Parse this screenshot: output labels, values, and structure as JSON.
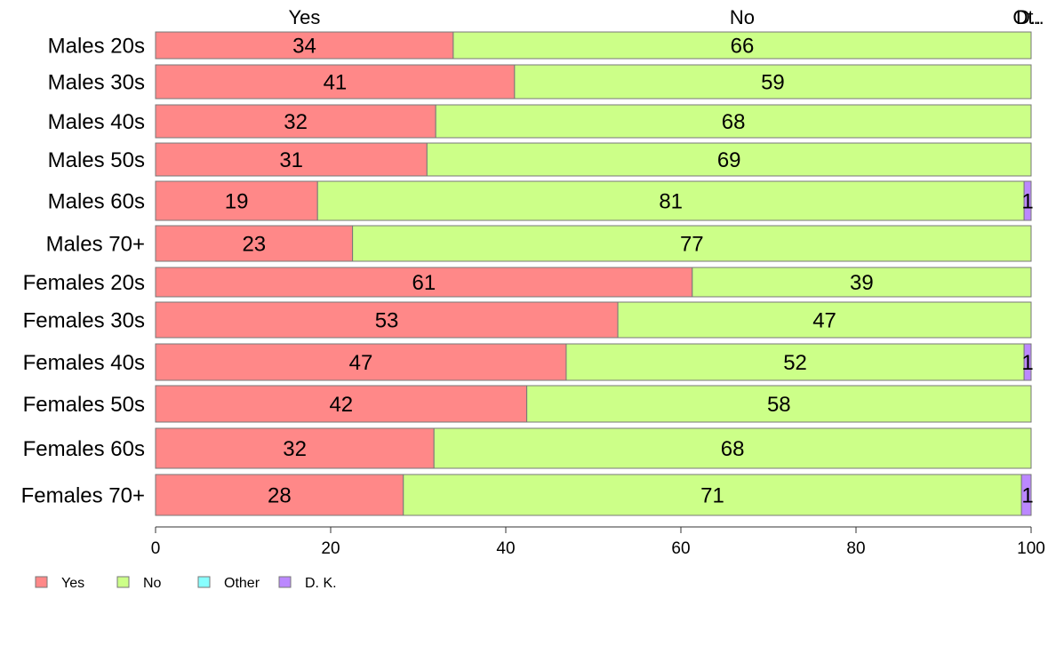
{
  "chart_data": {
    "type": "bar",
    "orientation": "horizontal",
    "stacked": "percent",
    "categories": [
      "Males 20s",
      "Males 30s",
      "Males 40s",
      "Males 50s",
      "Males 60s",
      "Males 70+",
      "Females 20s",
      "Females 30s",
      "Females 40s",
      "Females 50s",
      "Females 60s",
      "Females 70+"
    ],
    "series": [
      {
        "name": "Yes",
        "color": "#ff8888",
        "values": [
          34,
          41,
          32,
          31,
          18.5,
          22.5,
          61.3,
          52.8,
          46.9,
          42.4,
          31.8,
          28.3
        ],
        "labels": [
          "34",
          "41",
          "32",
          "31",
          "19",
          "23",
          "61",
          "53",
          "47",
          "42",
          "32",
          "28"
        ]
      },
      {
        "name": "No",
        "color": "#ccff88",
        "values": [
          66,
          59,
          68,
          69,
          80.7,
          77.5,
          38.7,
          47.2,
          52.3,
          57.6,
          68.2,
          70.6
        ],
        "labels": [
          "66",
          "59",
          "68",
          "69",
          "81",
          "77",
          "39",
          "47",
          "52",
          "58",
          "68",
          "71"
        ]
      },
      {
        "name": "Other",
        "color": "#88ffff",
        "values": [
          0,
          0,
          0,
          0,
          0,
          0,
          0,
          0,
          0,
          0,
          0,
          0
        ],
        "labels": [
          "",
          "",
          "",
          "",
          "",
          "",
          "",
          "",
          "",
          "",
          "",
          ""
        ]
      },
      {
        "name": "D. K.",
        "color": "#bb88ff",
        "values": [
          0,
          0,
          0,
          0,
          0.8,
          0,
          0,
          0,
          0.8,
          0,
          0,
          1.1
        ],
        "labels": [
          "",
          "",
          "",
          "",
          "1",
          "",
          "",
          "",
          "1",
          "",
          "",
          "1"
        ]
      }
    ],
    "top_labels": [
      {
        "text": "Yes",
        "at": 17
      },
      {
        "text": "No",
        "at": 67
      },
      {
        "text": "Ot..",
        "at": 99.7
      },
      {
        "text": "D..",
        "at": 99.7
      }
    ],
    "xlim": [
      0,
      100
    ],
    "xticks": [
      0,
      20,
      40,
      60,
      80,
      100
    ],
    "legend": {
      "position": "bottom-left",
      "entries": [
        "Yes",
        "No",
        "Other",
        "D. K."
      ]
    },
    "grid": false
  }
}
